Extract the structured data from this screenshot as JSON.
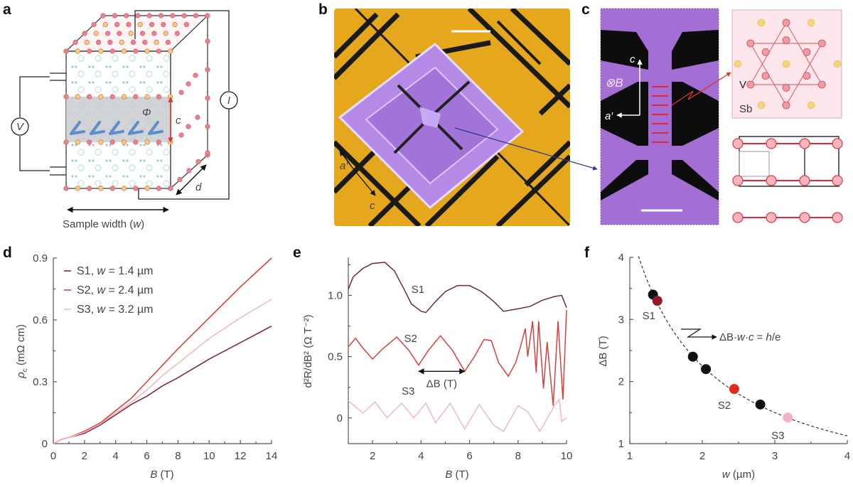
{
  "panel_labels": {
    "a": "a",
    "b": "b",
    "c": "c",
    "d": "d",
    "e": "e",
    "f": "f"
  },
  "panel_a": {
    "voltmeter": "V",
    "ammeter": "I",
    "flux": "Φ",
    "interlayer": "c",
    "depth": "d",
    "width_label": "Sample width (",
    "width_var": "w",
    "width_close": ")"
  },
  "panel_b": {
    "axis_a": "a′",
    "axis_c": "c",
    "colors": {
      "substrate": "#e5a81c",
      "device": "#b48ae6"
    }
  },
  "panel_c": {
    "axis_c": "c",
    "field": "⊗B",
    "axis_a": "a′",
    "v_atom": "V",
    "sb_atom": "Sb",
    "colors": {
      "sem": "#a46fd4",
      "atom": "#e46f78",
      "sb": "#f2cf6b"
    }
  },
  "chart_data": [
    {
      "panel": "d",
      "type": "line",
      "xlabel": "B (T)",
      "ylabel": "ρc (mΩ cm)",
      "xlim": [
        0,
        14
      ],
      "ylim": [
        0,
        0.9
      ],
      "xticks": [
        "0",
        "2",
        "4",
        "6",
        "8",
        "10",
        "12",
        "14"
      ],
      "yticks": [
        "0",
        "0.3",
        "0.6",
        "0.9"
      ],
      "legend": "top-left",
      "x": [
        0,
        0.5,
        1,
        2,
        3,
        4,
        5,
        6,
        7,
        8,
        10,
        12,
        14
      ],
      "series": [
        {
          "name": "S1, w = 1.4 µm",
          "color": "#7b2a3c",
          "values": [
            0,
            0.02,
            0.03,
            0.05,
            0.09,
            0.14,
            0.19,
            0.23,
            0.28,
            0.32,
            0.41,
            0.49,
            0.57
          ]
        },
        {
          "name": "S2, w = 2.4 µm",
          "color": "#d2423f",
          "values": [
            0,
            0.02,
            0.03,
            0.06,
            0.1,
            0.16,
            0.22,
            0.3,
            0.38,
            0.46,
            0.61,
            0.76,
            0.9
          ]
        },
        {
          "name": "S3, w = 3.2 µm",
          "color": "#f2b8c2",
          "values": [
            0,
            0.02,
            0.03,
            0.055,
            0.095,
            0.15,
            0.2,
            0.26,
            0.33,
            0.39,
            0.51,
            0.61,
            0.7
          ]
        }
      ]
    },
    {
      "panel": "e",
      "type": "line",
      "xlabel": "B (T)",
      "ylabel": "d²R/dB² (Ω T⁻²)",
      "xlim": [
        1,
        10
      ],
      "ylim": [
        -0.21,
        1.31
      ],
      "xticks": [
        "2",
        "4",
        "6",
        "8",
        "10"
      ],
      "yticks": [
        "0",
        "0.5",
        "1.0"
      ],
      "annotation": "ΔB (T)",
      "series": [
        {
          "name": "S1",
          "color": "#6e2838",
          "points": [
            [
              1,
              1.05
            ],
            [
              1.2,
              1.15
            ],
            [
              1.6,
              1.22
            ],
            [
              2,
              1.26
            ],
            [
              2.5,
              1.27
            ],
            [
              2.9,
              1.2
            ],
            [
              3.3,
              1.05
            ],
            [
              3.6,
              0.93
            ],
            [
              4,
              0.87
            ],
            [
              4.2,
              0.86
            ],
            [
              4.6,
              0.95
            ],
            [
              5,
              1.03
            ],
            [
              5.5,
              1.08
            ],
            [
              6,
              1.08
            ],
            [
              6.5,
              1.03
            ],
            [
              7,
              0.95
            ],
            [
              7.4,
              0.87
            ],
            [
              8,
              0.89
            ],
            [
              8.5,
              0.91
            ],
            [
              9,
              0.96
            ],
            [
              9.5,
              0.99
            ],
            [
              9.8,
              1.0
            ],
            [
              10,
              0.9
            ]
          ]
        },
        {
          "name": "S2",
          "color": "#d2423f",
          "points": [
            [
              1,
              0.58
            ],
            [
              1.3,
              0.65
            ],
            [
              1.6,
              0.57
            ],
            [
              2,
              0.48
            ],
            [
              2.4,
              0.56
            ],
            [
              3,
              0.66
            ],
            [
              3.5,
              0.55
            ],
            [
              3.9,
              0.43
            ],
            [
              4.3,
              0.55
            ],
            [
              4.8,
              0.67
            ],
            [
              5.3,
              0.55
            ],
            [
              5.8,
              0.38
            ],
            [
              6.2,
              0.5
            ],
            [
              6.6,
              0.64
            ],
            [
              6.9,
              0.63
            ],
            [
              7.2,
              0.45
            ],
            [
              7.6,
              0.34
            ],
            [
              7.9,
              0.45
            ],
            [
              8.1,
              0.58
            ],
            [
              8.3,
              0.73
            ],
            [
              8.4,
              0.5
            ],
            [
              8.6,
              0.79
            ],
            [
              8.75,
              0.37
            ],
            [
              8.85,
              0.79
            ],
            [
              9.05,
              0.24
            ],
            [
              9.2,
              0.62
            ],
            [
              9.45,
              0.1
            ],
            [
              9.65,
              0.79
            ],
            [
              9.85,
              0.15
            ],
            [
              10,
              0.88
            ]
          ]
        },
        {
          "name": "S3",
          "color": "#f2b8c2",
          "points": [
            [
              1,
              0.14
            ],
            [
              1.6,
              0.04
            ],
            [
              2.1,
              0.13
            ],
            [
              2.6,
              0.0
            ],
            [
              3.2,
              0.12
            ],
            [
              3.7,
              0.0
            ],
            [
              4.2,
              0.12
            ],
            [
              4.6,
              -0.04
            ],
            [
              5.2,
              0.12
            ],
            [
              5.8,
              -0.09
            ],
            [
              6.4,
              0.11
            ],
            [
              7.0,
              -0.06
            ],
            [
              7.4,
              -0.11
            ],
            [
              8.0,
              0.1
            ],
            [
              8.4,
              0.05
            ],
            [
              8.9,
              -0.11
            ],
            [
              9.5,
              0.1
            ],
            [
              9.7,
              0.15
            ],
            [
              9.8,
              -0.03
            ],
            [
              10,
              0.0
            ]
          ]
        }
      ]
    },
    {
      "panel": "f",
      "type": "scatter",
      "xlabel": "w (µm)",
      "ylabel": "ΔB (T)",
      "xlim": [
        1,
        4
      ],
      "ylim": [
        1,
        4
      ],
      "xticks": [
        "1",
        "2",
        "3",
        "4"
      ],
      "yticks": [
        "1",
        "2",
        "3",
        "4"
      ],
      "fit_label": "ΔB·w·c = h/e",
      "fit_constant": 4.5,
      "points": [
        {
          "w": 1.32,
          "dB": 3.4,
          "color": "#111111",
          "label": ""
        },
        {
          "w": 1.38,
          "dB": 3.3,
          "color": "#8e1c2a",
          "label": "S1"
        },
        {
          "w": 1.87,
          "dB": 2.4,
          "color": "#111111",
          "label": ""
        },
        {
          "w": 2.05,
          "dB": 2.2,
          "color": "#111111",
          "label": ""
        },
        {
          "w": 2.44,
          "dB": 1.88,
          "color": "#e02a1e",
          "label": "S2"
        },
        {
          "w": 2.8,
          "dB": 1.63,
          "color": "#111111",
          "label": ""
        },
        {
          "w": 3.18,
          "dB": 1.42,
          "color": "#f4b3c4",
          "label": "S3"
        }
      ]
    }
  ]
}
